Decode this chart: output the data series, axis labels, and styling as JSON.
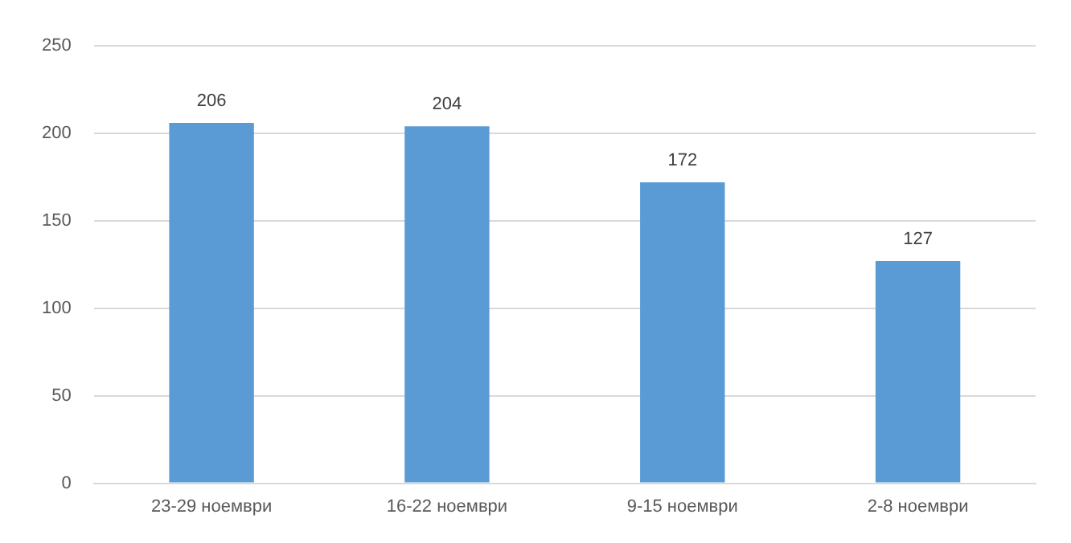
{
  "chart_data": {
    "type": "bar",
    "categories": [
      "23-29 ноември",
      "16-22 ноември",
      "9-15 ноември",
      "2-8 ноември"
    ],
    "values": [
      206,
      204,
      172,
      127
    ],
    "color": "#5b9bd5",
    "ylim": [
      0,
      250
    ],
    "yticks": [
      0,
      50,
      100,
      150,
      200,
      250
    ],
    "grid": "y",
    "data_labels": true,
    "legend": false
  }
}
